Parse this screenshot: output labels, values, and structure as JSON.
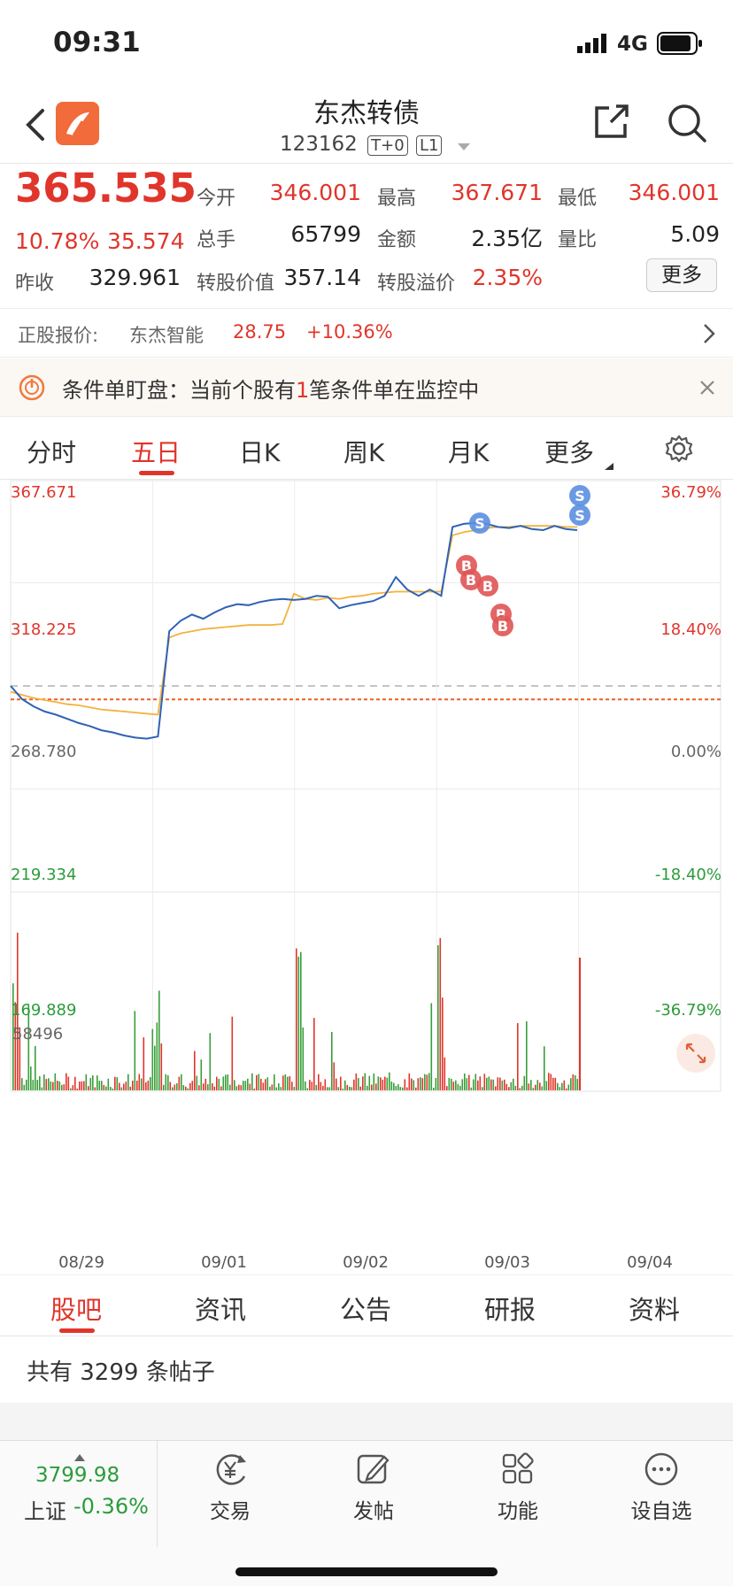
{
  "status": {
    "time": "09:31",
    "network": "4G"
  },
  "header": {
    "title": "东杰转债",
    "code": "123162",
    "badge1": "T+0",
    "badge2": "L1"
  },
  "quote": {
    "price": "365.535",
    "change_pct": "10.78%",
    "change": "35.574",
    "prev_close_label": "昨收",
    "prev_close": "329.961",
    "open_label": "今开",
    "open": "346.001",
    "high_label": "最高",
    "high": "367.671",
    "low_label": "最低",
    "low": "346.001",
    "volume_label": "总手",
    "volume": "65799",
    "amount_label": "金额",
    "amount": "2.35亿",
    "ratio_label": "量比",
    "ratio": "5.09",
    "conv_value_label": "转股价值",
    "conv_value": "357.14",
    "premium_label": "转股溢价",
    "premium": "2.35%",
    "more_button": "更多"
  },
  "stock": {
    "label": "正股报价:",
    "name": "东杰智能",
    "price": "28.75",
    "change": "+10.36%"
  },
  "alert": {
    "text_prefix": "条件单盯盘：当前个股有",
    "count": "1",
    "text_suffix": "笔条件单在监控中"
  },
  "tabs": [
    "分时",
    "五日",
    "日K",
    "周K",
    "月K",
    "更多"
  ],
  "active_tab": "五日",
  "chart_data": {
    "type": "line",
    "y_labels_left": [
      "367.671",
      "318.225",
      "268.780",
      "219.334",
      "169.889"
    ],
    "y_labels_right": [
      "36.79%",
      "18.40%",
      "0.00%",
      "-18.40%",
      "-36.79%"
    ],
    "ylim": [
      169.889,
      367.671
    ],
    "base": 268.78,
    "volume_max_label": "58496",
    "x_labels": [
      "08/29",
      "09/01",
      "09/02",
      "09/03",
      "09/04"
    ],
    "price_series": {
      "name": "price",
      "color": "#2f62b4",
      "values": [
        268.8,
        262.5,
        259.0,
        256.5,
        255.0,
        253.0,
        251.0,
        249.5,
        247.5,
        246.5,
        245.0,
        244.0,
        243.5,
        244.5,
        295.0,
        300.0,
        303.0,
        301.0,
        304.0,
        306.5,
        308.0,
        307.5,
        309.0,
        310.0,
        310.5,
        310.0,
        310.5,
        312.0,
        311.5,
        306.0,
        307.5,
        308.5,
        309.5,
        312.0,
        321.0,
        315.0,
        312.0,
        315.0,
        312.0,
        345.0,
        346.5,
        347.0,
        346.5,
        345.0,
        344.5,
        345.5,
        344.0,
        343.5,
        345.5,
        344.0,
        343.5
      ]
    },
    "avg_series": {
      "name": "avg",
      "color": "#f2b33d",
      "values": [
        266.0,
        264.5,
        263.0,
        262.0,
        261.0,
        260.0,
        259.5,
        258.5,
        257.5,
        257.0,
        256.5,
        256.0,
        255.5,
        255.0,
        292.0,
        294.0,
        295.0,
        296.0,
        296.5,
        297.0,
        297.5,
        298.0,
        298.0,
        298.0,
        298.5,
        313.0,
        310.5,
        310.0,
        311.0,
        310.5,
        311.5,
        312.0,
        313.0,
        313.5,
        314.0,
        314.0,
        314.0,
        314.0,
        314.0,
        341.0,
        342.5,
        343.5,
        344.5,
        345.0,
        345.0,
        345.5,
        345.5,
        345.5,
        345.5,
        345.0,
        345.0
      ]
    }
  },
  "subtabs": [
    "股吧",
    "资讯",
    "公告",
    "研报",
    "资料"
  ],
  "active_subtab": "股吧",
  "posts": {
    "text": "共有 3299 条帖子"
  },
  "bottom": {
    "index_value": "3799.98",
    "index_name": "上证",
    "index_change": "-0.36%",
    "items": [
      "交易",
      "发帖",
      "功能",
      "设自选"
    ]
  }
}
